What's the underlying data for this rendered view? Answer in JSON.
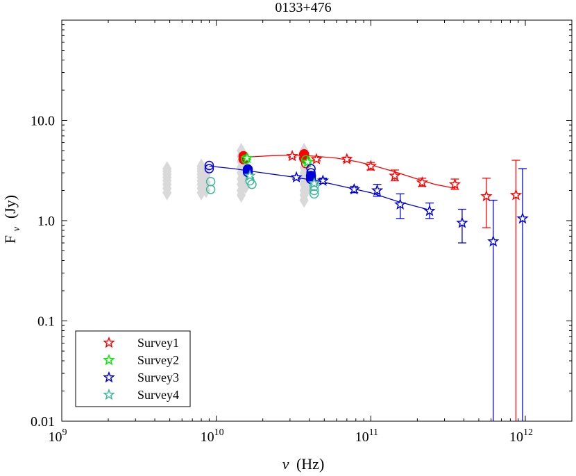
{
  "chart_data": {
    "type": "scatter",
    "title": "0133+476",
    "xlabel_symbol": "ν",
    "xlabel_unit": "(Hz)",
    "ylabel_main": "F",
    "ylabel_sub": "ν",
    "ylabel_unit": "(Jy)",
    "x_scale": "log",
    "y_scale": "log",
    "xlim": [
      1000000000.0,
      2000000000000.0
    ],
    "ylim": [
      0.01,
      100
    ],
    "x_ticks": [
      {
        "value": 1000000000.0,
        "base": "10",
        "exp": "9"
      },
      {
        "value": 10000000000.0,
        "base": "10",
        "exp": "10"
      },
      {
        "value": 100000000000.0,
        "base": "10",
        "exp": "11"
      },
      {
        "value": 1000000000000.0,
        "base": "10",
        "exp": "12"
      }
    ],
    "y_ticks": [
      {
        "value": 0.01,
        "label": "0.01"
      },
      {
        "value": 0.1,
        "label": "0.1"
      },
      {
        "value": 1,
        "label": "1.0"
      },
      {
        "value": 10,
        "label": "10.0"
      }
    ],
    "legend": {
      "position": "bottom-left",
      "entries": [
        {
          "name": "Survey1",
          "color": "#ff0000"
        },
        {
          "name": "Survey2",
          "color": "#00ee00"
        },
        {
          "name": "Survey3",
          "color": "#0000dd"
        },
        {
          "name": "Survey4",
          "color": "#3cb89a"
        }
      ]
    },
    "background_points": {
      "color": "#d9d9d9",
      "marker": "diamond",
      "points": [
        [
          4800000000.0,
          1.9
        ],
        [
          4800000000.0,
          2.1
        ],
        [
          4800000000.0,
          2.3
        ],
        [
          4800000000.0,
          2.5
        ],
        [
          4800000000.0,
          2.7
        ],
        [
          4800000000.0,
          2.9
        ],
        [
          4800000000.0,
          3.1
        ],
        [
          4800000000.0,
          3.3
        ],
        [
          8000000000.0,
          1.9
        ],
        [
          8000000000.0,
          2.1
        ],
        [
          8000000000.0,
          2.3
        ],
        [
          8000000000.0,
          2.5
        ],
        [
          8000000000.0,
          2.7
        ],
        [
          8000000000.0,
          2.9
        ],
        [
          8000000000.0,
          3.1
        ],
        [
          8000000000.0,
          3.3
        ],
        [
          8000000000.0,
          3.5
        ],
        [
          8600000000.0,
          2.0
        ],
        [
          8600000000.0,
          2.4
        ],
        [
          8600000000.0,
          2.8
        ],
        [
          8600000000.0,
          3.2
        ],
        [
          14500000000.0,
          1.8
        ],
        [
          14500000000.0,
          2.0
        ],
        [
          14500000000.0,
          2.3
        ],
        [
          14500000000.0,
          2.6
        ],
        [
          14500000000.0,
          3.0
        ],
        [
          14500000000.0,
          3.4
        ],
        [
          14500000000.0,
          3.9
        ],
        [
          14500000000.0,
          4.4
        ],
        [
          14500000000.0,
          5.0
        ],
        [
          15500000000.0,
          2.2
        ],
        [
          15500000000.0,
          2.8
        ],
        [
          15500000000.0,
          3.6
        ],
        [
          37000000000.0,
          1.6
        ],
        [
          37000000000.0,
          1.8
        ],
        [
          37000000000.0,
          2.0
        ],
        [
          37000000000.0,
          2.3
        ],
        [
          37000000000.0,
          2.6
        ],
        [
          37000000000.0,
          3.0
        ],
        [
          37000000000.0,
          3.4
        ],
        [
          37000000000.0,
          3.9
        ],
        [
          37000000000.0,
          4.5
        ],
        [
          37000000000.0,
          5.0
        ],
        [
          39000000000.0,
          2.1
        ],
        [
          39000000000.0,
          2.8
        ],
        [
          39000000000.0,
          3.6
        ]
      ]
    },
    "series": [
      {
        "name": "Survey1",
        "color": "#ff0000",
        "fit_line": [
          [
            15500000000.0,
            4.3
          ],
          [
            23000000000.0,
            4.45
          ],
          [
            32000000000.0,
            4.5
          ],
          [
            43000000000.0,
            4.4
          ],
          [
            60000000000.0,
            4.2
          ],
          [
            80000000000.0,
            3.9
          ],
          [
            100000000000.0,
            3.6
          ],
          [
            140000000000.0,
            3.1
          ],
          [
            200000000000.0,
            2.6
          ],
          [
            260000000000.0,
            2.3
          ],
          [
            350000000000.0,
            2.1
          ]
        ],
        "circles_filled": [
          [
            15000000000.0,
            4.4
          ],
          [
            15000000000.0,
            4.1
          ],
          [
            37000000000.0,
            4.6
          ],
          [
            37000000000.0,
            4.2
          ]
        ],
        "circles_open": [
          [
            38000000000.0,
            3.7
          ]
        ],
        "stars": [
          {
            "x": 31000000000.0,
            "y": 4.4,
            "lo": 4.3,
            "hi": 4.5
          },
          {
            "x": 44500000000.0,
            "y": 4.1,
            "lo": 3.95,
            "hi": 4.25
          },
          {
            "x": 70000000000.0,
            "y": 4.1,
            "lo": 3.9,
            "hi": 4.3
          },
          {
            "x": 100000000000.0,
            "y": 3.5,
            "lo": 3.2,
            "hi": 3.8
          },
          {
            "x": 143000000000.0,
            "y": 2.8,
            "lo": 2.5,
            "hi": 3.2
          },
          {
            "x": 215000000000.0,
            "y": 2.4,
            "lo": 2.2,
            "hi": 2.65
          },
          {
            "x": 350000000000.0,
            "y": 2.3,
            "lo": 2.05,
            "hi": 2.6
          },
          {
            "x": 560000000000.0,
            "y": 1.75,
            "lo": 0.85,
            "hi": 2.65
          },
          {
            "x": 870000000000.0,
            "y": 1.8,
            "lo": 0.01,
            "hi": 4.0
          }
        ]
      },
      {
        "name": "Survey2",
        "color": "#00ee00",
        "fit_line": [],
        "circles_filled": [],
        "circles_open": [
          [
            15500000000.0,
            4.1
          ],
          [
            38000000000.0,
            4.05
          ]
        ],
        "stars": [
          {
            "x": 15800000000.0,
            "y": 4.2,
            "lo": 4.1,
            "hi": 4.3
          },
          {
            "x": 39000000000.0,
            "y": 3.85,
            "lo": 3.75,
            "hi": 3.95
          }
        ]
      },
      {
        "name": "Survey3",
        "color": "#0000dd",
        "fit_line": [
          [
            9000000000.0,
            3.5
          ],
          [
            13000000000.0,
            3.3
          ],
          [
            20000000000.0,
            3.0
          ],
          [
            30000000000.0,
            2.75
          ],
          [
            45000000000.0,
            2.5
          ],
          [
            70000000000.0,
            2.15
          ],
          [
            100000000000.0,
            1.9
          ],
          [
            150000000000.0,
            1.55
          ],
          [
            230000000000.0,
            1.3
          ]
        ],
        "circles_filled": [
          [
            16000000000.0,
            3.25
          ],
          [
            16000000000.0,
            3.05
          ],
          [
            41000000000.0,
            2.8
          ],
          [
            41000000000.0,
            2.6
          ]
        ],
        "circles_open": [
          [
            9000000000.0,
            3.55
          ],
          [
            9000000000.0,
            3.3
          ],
          [
            41000000000.0,
            3.3
          ],
          [
            41000000000.0,
            3.0
          ]
        ],
        "stars": [
          {
            "x": 33000000000.0,
            "y": 2.7,
            "lo": 2.6,
            "hi": 2.8
          },
          {
            "x": 49000000000.0,
            "y": 2.5,
            "lo": 2.35,
            "hi": 2.65
          },
          {
            "x": 78000000000.0,
            "y": 2.05,
            "lo": 1.9,
            "hi": 2.2
          },
          {
            "x": 110000000000.0,
            "y": 2.0,
            "lo": 1.75,
            "hi": 2.3
          },
          {
            "x": 155000000000.0,
            "y": 1.45,
            "lo": 1.05,
            "hi": 1.85
          },
          {
            "x": 240000000000.0,
            "y": 1.25,
            "lo": 1.05,
            "hi": 1.5
          },
          {
            "x": 390000000000.0,
            "y": 0.95,
            "lo": 0.6,
            "hi": 1.3
          },
          {
            "x": 620000000000.0,
            "y": 0.62,
            "lo": 0.01,
            "hi": 1.6
          },
          {
            "x": 960000000000.0,
            "y": 1.05,
            "lo": 0.01,
            "hi": 3.3
          }
        ]
      },
      {
        "name": "Survey4",
        "color": "#3cb89a",
        "fit_line": [],
        "circles_filled": [],
        "circles_open": [
          [
            9200000000.0,
            2.45
          ],
          [
            9200000000.0,
            2.05
          ],
          [
            16500000000.0,
            2.5
          ],
          [
            17000000000.0,
            2.3
          ],
          [
            43000000000.0,
            2.2
          ],
          [
            43000000000.0,
            2.0
          ],
          [
            43000000000.0,
            1.85
          ]
        ],
        "stars": [
          {
            "x": 16500000000.0,
            "y": 2.8,
            "lo": 2.7,
            "hi": 2.9
          },
          {
            "x": 43000000000.0,
            "y": 2.35,
            "lo": 2.25,
            "hi": 2.45
          }
        ]
      }
    ]
  }
}
